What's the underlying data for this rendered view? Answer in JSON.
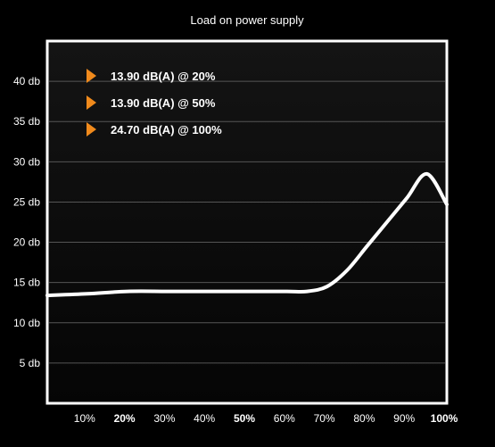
{
  "chart_data": {
    "type": "line",
    "title": "Load on power supply",
    "xlabel": "",
    "ylabel": "",
    "grid": true,
    "ylim": [
      0,
      45
    ],
    "xlim": [
      0,
      100
    ],
    "y_ticks": [
      {
        "value": 5,
        "label": "5 db"
      },
      {
        "value": 10,
        "label": "10 db"
      },
      {
        "value": 15,
        "label": "15 db"
      },
      {
        "value": 20,
        "label": "20 db"
      },
      {
        "value": 25,
        "label": "25 db"
      },
      {
        "value": 30,
        "label": "30 db"
      },
      {
        "value": 35,
        "label": "35 db"
      },
      {
        "value": 40,
        "label": "40 db"
      }
    ],
    "x_ticks": [
      {
        "value": 10,
        "label": "10%",
        "bold": false
      },
      {
        "value": 20,
        "label": "20%",
        "bold": true
      },
      {
        "value": 30,
        "label": "30%",
        "bold": false
      },
      {
        "value": 40,
        "label": "40%",
        "bold": false
      },
      {
        "value": 50,
        "label": "50%",
        "bold": true
      },
      {
        "value": 60,
        "label": "60%",
        "bold": false
      },
      {
        "value": 70,
        "label": "70%",
        "bold": false
      },
      {
        "value": 80,
        "label": "80%",
        "bold": false
      },
      {
        "value": 90,
        "label": "90%",
        "bold": false
      },
      {
        "value": 100,
        "label": "100%",
        "bold": true
      }
    ],
    "series": [
      {
        "x": [
          0,
          10,
          20,
          30,
          40,
          50,
          60,
          65,
          70,
          75,
          80,
          85,
          90,
          95,
          100
        ],
        "values": [
          13.4,
          13.6,
          13.9,
          13.9,
          13.9,
          13.9,
          13.9,
          13.9,
          14.5,
          16.5,
          19.5,
          22.5,
          25.5,
          28.5,
          24.7
        ],
        "color": "#ffffff"
      }
    ],
    "annotations": [
      {
        "text": "13.90 dB(A) @ 20%",
        "marker_color": "#f08a1c"
      },
      {
        "text": "13.90 dB(A) @ 50%",
        "marker_color": "#f08a1c"
      },
      {
        "text": "24.70 dB(A) @ 100%",
        "marker_color": "#f08a1c"
      }
    ],
    "colors": {
      "background": "#000000",
      "plot_border": "#ffffff",
      "grid": "#555555",
      "accent": "#f08a1c"
    }
  }
}
